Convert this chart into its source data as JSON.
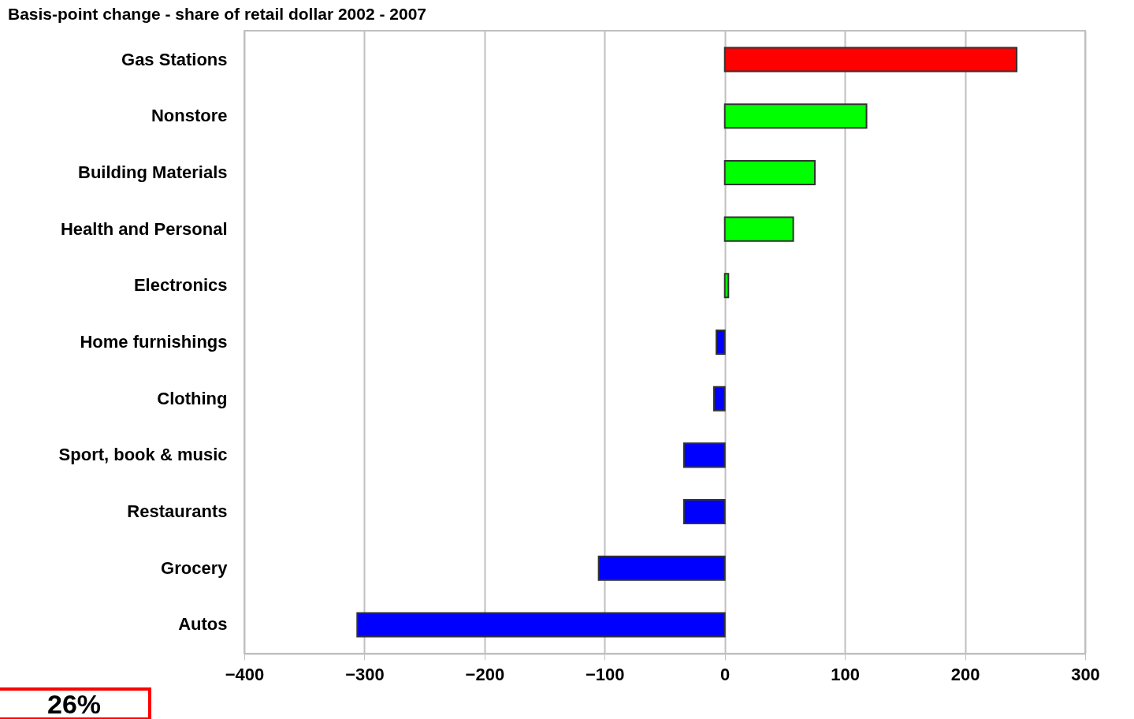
{
  "chart_data": {
    "type": "bar",
    "orientation": "horizontal",
    "title": "Basis-point change - share of retail dollar 2002 - 2007",
    "categories": [
      "Gas Stations",
      "Nonstore",
      "Building Materials",
      "Health and Personal",
      "Electronics",
      "Home furnishings",
      "Clothing",
      "Sport, book & music",
      "Restaurants",
      "Grocery",
      "Autos"
    ],
    "values": [
      243,
      118,
      75,
      57,
      3,
      -7,
      -9,
      -34,
      -34,
      -105,
      -306
    ],
    "colors": [
      "#ff0000",
      "#00ff00",
      "#00ff00",
      "#00ff00",
      "#00ff00",
      "#0000ff",
      "#0000ff",
      "#0000ff",
      "#0000ff",
      "#0000ff",
      "#0000ff"
    ],
    "xlim": [
      -400,
      300
    ],
    "xticks": [
      -400,
      -300,
      -200,
      -100,
      0,
      100,
      200,
      300
    ],
    "grid": "x",
    "annotations": [
      "26%"
    ]
  }
}
